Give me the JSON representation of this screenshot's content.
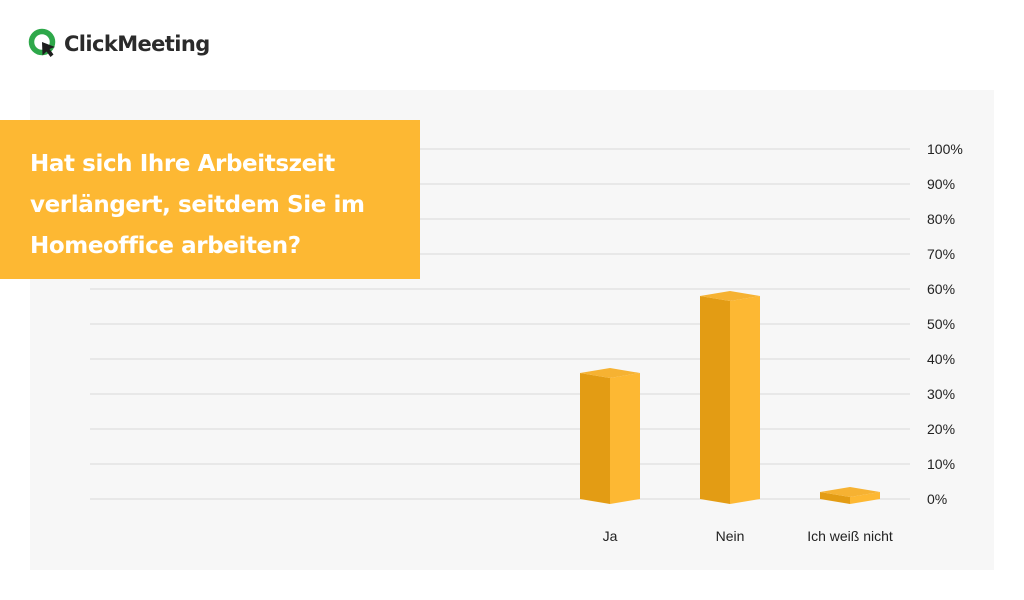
{
  "brand": {
    "name": "ClickMeeting"
  },
  "colors": {
    "accent": "#fdb833",
    "bar_front": "#fdb833",
    "bar_side": "#e39c14",
    "bar_top": "#f6b232",
    "grid": "#d9d9d9",
    "panel_bg": "#f7f7f7",
    "logo_green": "#2ea84a"
  },
  "chart_data": {
    "type": "bar",
    "title": "Hat sich Ihre Arbeitszeit verlängert, seitdem Sie im Homeoffice arbeiten?",
    "categories": [
      "Ja",
      "Nein",
      "Ich weiß nicht"
    ],
    "values": [
      36,
      58,
      2
    ],
    "ylim": [
      0,
      100
    ],
    "yticks": [
      "0%",
      "10%",
      "20%",
      "30%",
      "40%",
      "50%",
      "60%",
      "70%",
      "80%",
      "90%",
      "100%"
    ],
    "xlabel": "",
    "ylabel": "",
    "grid": true,
    "bar_style": "3d"
  }
}
